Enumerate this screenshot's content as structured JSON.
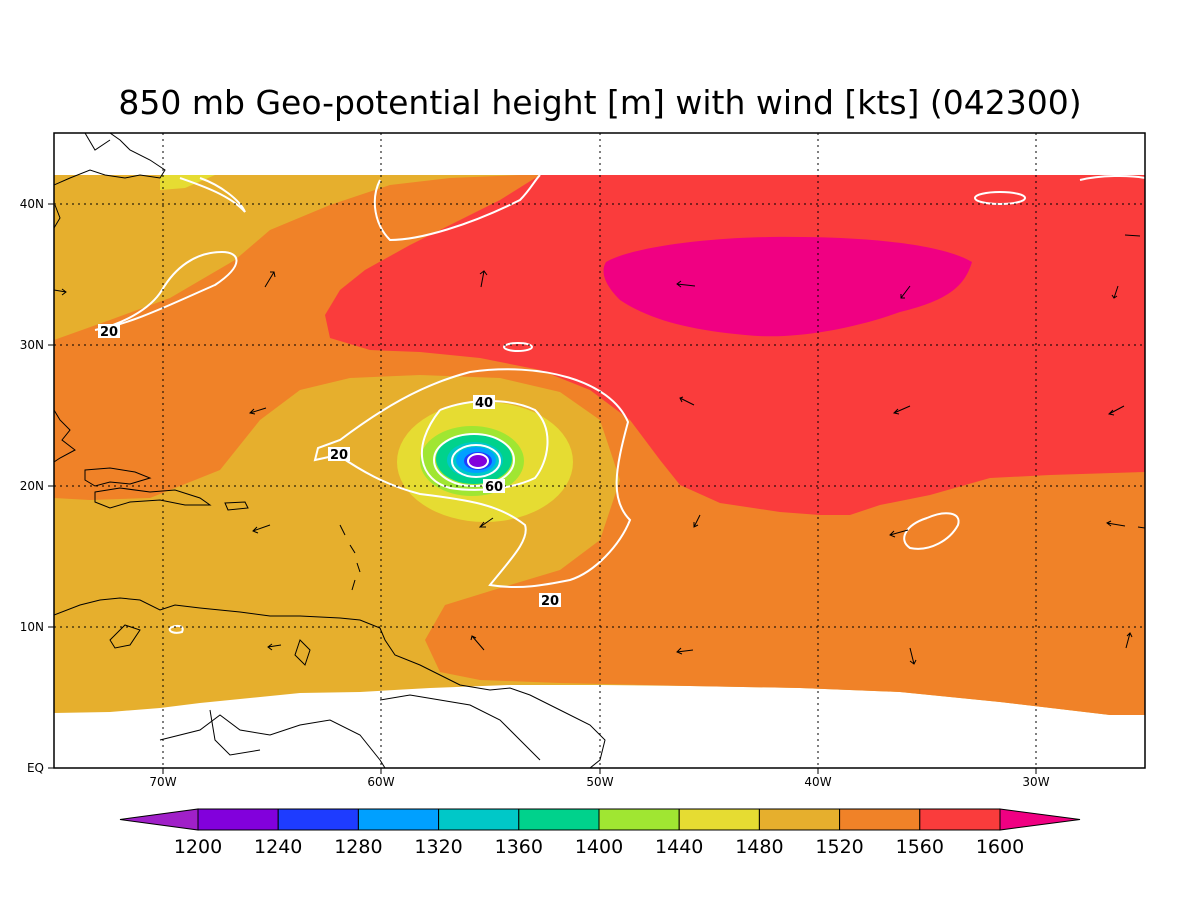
{
  "title": "850 mb Geo-potential height [m] with wind [kts] (042300)",
  "map": {
    "lon_ticks": [
      "70W",
      "60W",
      "50W",
      "40W",
      "30W"
    ],
    "lat_ticks": [
      "EQ",
      "10N",
      "20N",
      "30N",
      "40N"
    ],
    "lon_range": [
      -75,
      -25
    ],
    "lat_range": [
      0,
      45
    ],
    "grid": true,
    "contour_labels": [
      {
        "text": "20",
        "lon": -72.5,
        "lat": 31
      },
      {
        "text": "20",
        "lon": -62.0,
        "lat": 22
      },
      {
        "text": "40",
        "lon": -54.5,
        "lat": 26
      },
      {
        "text": "60",
        "lon": -54.8,
        "lat": 20
      },
      {
        "text": "20",
        "lon": -52.7,
        "lat": 12
      }
    ]
  },
  "colorbar": {
    "labels": [
      "1200",
      "1240",
      "1280",
      "1320",
      "1360",
      "1400",
      "1440",
      "1480",
      "1520",
      "1560",
      "1600"
    ],
    "colors": [
      "#a020c8",
      "#8200dc",
      "#1e3cff",
      "#00a0ff",
      "#00c8c8",
      "#00d28c",
      "#a0e632",
      "#e6dc32",
      "#e6af2d",
      "#f08228",
      "#fa3c3c",
      "#f00082"
    ]
  }
}
